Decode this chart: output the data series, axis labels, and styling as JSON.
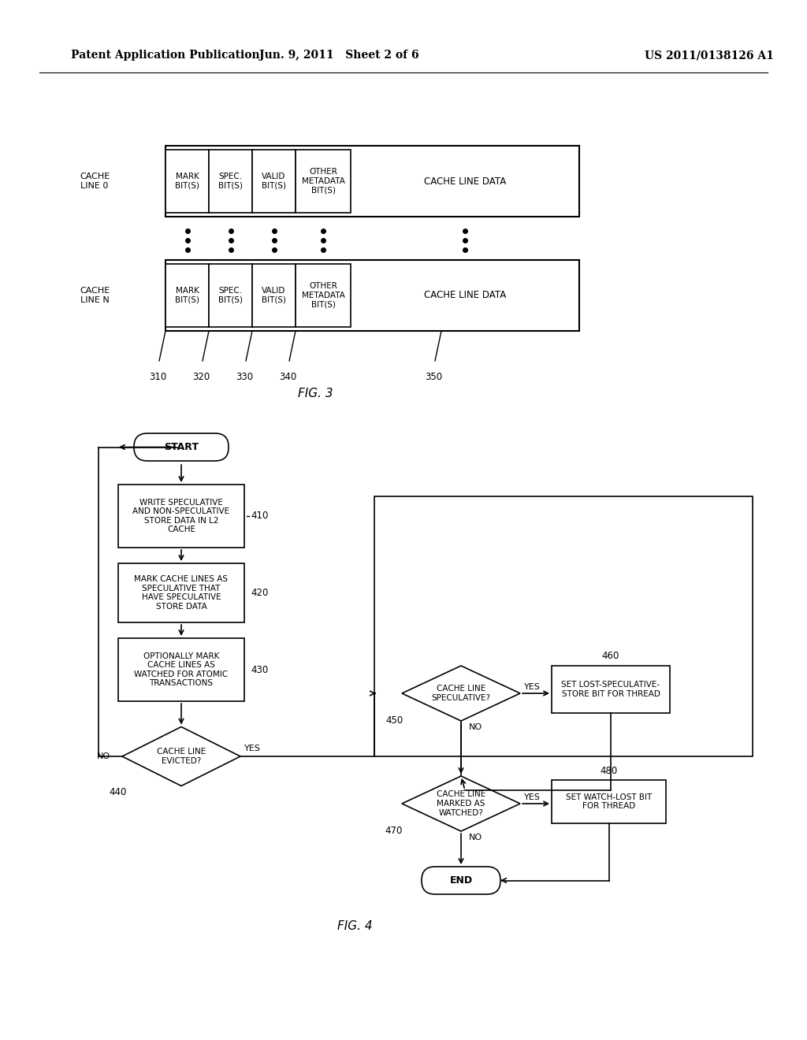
{
  "header_left": "Patent Application Publication",
  "header_center": "Jun. 9, 2011   Sheet 2 of 6",
  "header_right": "US 2011/0138126 A1",
  "fig3_label": "FIG. 3",
  "fig4_label": "FIG. 4",
  "cache_line0_label": "CACHE\nLINE 0",
  "cache_lineN_label": "CACHE\nLINE N",
  "col1_label": "MARK\nBIT(S)",
  "col2_label": "SPEC.\nBIT(S)",
  "col3_label": "VALID\nBIT(S)",
  "col4_label": "OTHER\nMETADATA\nBIT(S)",
  "col5_label": "CACHE LINE DATA",
  "ref310": "310",
  "ref320": "320",
  "ref330": "330",
  "ref340": "340",
  "ref350": "350",
  "start_label": "START",
  "end_label": "END",
  "box410_text": "WRITE SPECULATIVE\nAND NON-SPECULATIVE\nSTORE DATA IN L2\nCACHE",
  "box420_text": "MARK CACHE LINES AS\nSPECULATIVE THAT\nHAVE SPECULATIVE\nSTORE DATA",
  "box430_text": "OPTIONALLY MARK\nCACHE LINES AS\nWATCHED FOR ATOMIC\nTRANSACTIONS",
  "dia440_text": "CACHE LINE\nEVICTED?",
  "dia450_text": "CACHE LINE\nSPECULATIVE?",
  "dia470_text": "CACHE LINE\nMARKED AS\nWATCHED?",
  "box460_text": "SET LOST-SPECULATIVE-\nSTORE BIT FOR THREAD",
  "box480_text": "SET WATCH-LOST BIT\nFOR THREAD",
  "ref410": "410",
  "ref420": "420",
  "ref430": "430",
  "ref440": "440",
  "ref450": "450",
  "ref460": "460",
  "ref470": "470",
  "ref480": "480",
  "bg_color": "#ffffff",
  "line_color": "#000000",
  "text_color": "#000000"
}
